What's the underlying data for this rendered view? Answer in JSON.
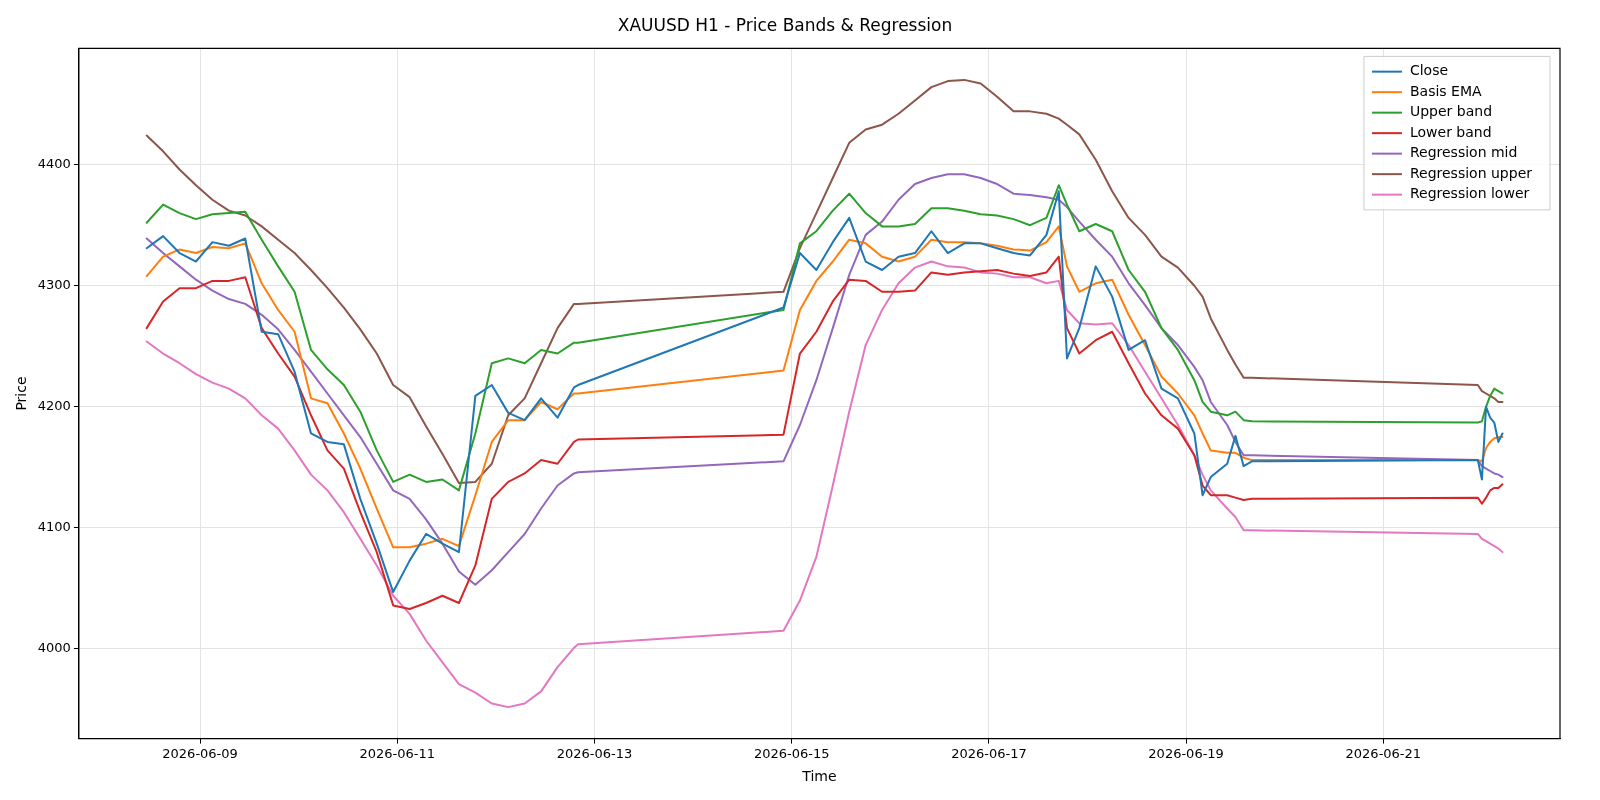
{
  "chart_data": {
    "type": "line",
    "title": "XAUUSD H1 - Price Bands & Regression",
    "xlabel": "Time",
    "ylabel": "Price",
    "x": [
      "2026-06-08T11:00",
      "2026-06-08T15:00",
      "2026-06-08T19:00",
      "2026-06-08T23:00",
      "2026-06-09T03:00",
      "2026-06-09T07:00",
      "2026-06-09T11:00",
      "2026-06-09T15:00",
      "2026-06-09T19:00",
      "2026-06-09T23:00",
      "2026-06-10T03:00",
      "2026-06-10T07:00",
      "2026-06-10T11:00",
      "2026-06-10T15:00",
      "2026-06-10T19:00",
      "2026-06-10T23:00",
      "2026-06-11T03:00",
      "2026-06-11T07:00",
      "2026-06-11T11:00",
      "2026-06-11T15:00",
      "2026-06-11T19:00",
      "2026-06-11T23:00",
      "2026-06-12T03:00",
      "2026-06-12T07:00",
      "2026-06-12T11:00",
      "2026-06-12T15:00",
      "2026-06-12T19:00",
      "2026-06-12T20:00",
      "2026-06-14T22:00",
      "2026-06-15T02:00",
      "2026-06-15T06:00",
      "2026-06-15T10:00",
      "2026-06-15T14:00",
      "2026-06-15T18:00",
      "2026-06-15T22:00",
      "2026-06-16T02:00",
      "2026-06-16T06:00",
      "2026-06-16T10:00",
      "2026-06-16T14:00",
      "2026-06-16T18:00",
      "2026-06-16T22:00",
      "2026-06-17T02:00",
      "2026-06-17T06:00",
      "2026-06-17T10:00",
      "2026-06-17T14:00",
      "2026-06-17T17:00",
      "2026-06-17T19:00",
      "2026-06-17T22:00",
      "2026-06-18T02:00",
      "2026-06-18T06:00",
      "2026-06-18T10:00",
      "2026-06-18T14:00",
      "2026-06-18T18:00",
      "2026-06-18T22:00",
      "2026-06-19T02:00",
      "2026-06-19T04:00",
      "2026-06-19T06:00",
      "2026-06-19T10:00",
      "2026-06-19T12:00",
      "2026-06-19T14:00",
      "2026-06-19T16:00",
      "2026-06-21T23:00",
      "2026-06-22T00:00",
      "2026-06-22T01:00",
      "2026-06-22T02:00",
      "2026-06-22T03:00",
      "2026-06-22T04:00",
      "2026-06-22T05:00"
    ],
    "series": [
      {
        "name": "Close",
        "color": "#1f77b4",
        "values": [
          4331,
          4341,
          4327,
          4320,
          4336,
          4333,
          4339,
          4262,
          4260,
          4229,
          4178,
          4171,
          4169,
          4124,
          4087,
          4047,
          4073,
          4095,
          4087,
          4080,
          4209,
          4218,
          4195,
          4189,
          4207,
          4191,
          4216,
          4218,
          4282,
          4327,
          4313,
          4336,
          4356,
          4320,
          4313,
          4324,
          4327,
          4345,
          4327,
          4335,
          4335,
          4331,
          4327,
          4325,
          4342,
          4378,
          4240,
          4265,
          4316,
          4291,
          4247,
          4255,
          4215,
          4207,
          4178,
          4127,
          4142,
          4153,
          4176,
          4151,
          4155,
          4156,
          4140,
          4200,
          4191,
          4187,
          4171,
          4178
        ]
      },
      {
        "name": "Basis EMA",
        "color": "#ff7f0e",
        "values": [
          4308,
          4324,
          4330,
          4327,
          4332,
          4331,
          4335,
          4302,
          4280,
          4262,
          4207,
          4203,
          4178,
          4149,
          4116,
          4084,
          4084,
          4087,
          4091,
          4085,
          4127,
          4171,
          4189,
          4189,
          4204,
          4198,
          4211,
          4211,
          4230,
          4280,
          4304,
          4320,
          4338,
          4335,
          4324,
          4320,
          4324,
          4338,
          4336,
          4336,
          4335,
          4333,
          4330,
          4329,
          4336,
          4349,
          4316,
          4295,
          4302,
          4305,
          4276,
          4251,
          4225,
          4211,
          4193,
          4178,
          4164,
          4162,
          4162,
          4158,
          4156,
          4156,
          4155,
          4166,
          4171,
          4174,
          4175,
          4175
        ]
      },
      {
        "name": "Upper band",
        "color": "#2ca02c",
        "values": [
          4352,
          4367,
          4360,
          4355,
          4359,
          4360,
          4361,
          4338,
          4316,
          4295,
          4247,
          4231,
          4218,
          4196,
          4164,
          4138,
          4144,
          4138,
          4140,
          4131,
          4178,
          4236,
          4240,
          4236,
          4247,
          4244,
          4253,
          4253,
          4280,
          4335,
          4345,
          4362,
          4376,
          4360,
          4349,
          4349,
          4351,
          4364,
          4364,
          4362,
          4359,
          4358,
          4355,
          4350,
          4356,
          4383,
          4367,
          4345,
          4351,
          4345,
          4313,
          4295,
          4265,
          4247,
          4222,
          4204,
          4196,
          4193,
          4196,
          4189,
          4188,
          4187,
          4188,
          4200,
          4209,
          4215,
          4213,
          4211
        ]
      },
      {
        "name": "Lower band",
        "color": "#d62728",
        "values": [
          4265,
          4287,
          4298,
          4298,
          4304,
          4304,
          4307,
          4265,
          4244,
          4225,
          4193,
          4164,
          4149,
          4113,
          4080,
          4036,
          4033,
          4038,
          4044,
          4038,
          4069,
          4124,
          4138,
          4145,
          4156,
          4153,
          4171,
          4173,
          4177,
          4244,
          4262,
          4287,
          4305,
          4304,
          4295,
          4295,
          4296,
          4311,
          4309,
          4311,
          4312,
          4313,
          4310,
          4308,
          4311,
          4324,
          4265,
          4244,
          4255,
          4262,
          4236,
          4211,
          4193,
          4182,
          4160,
          4135,
          4127,
          4127,
          4125,
          4123,
          4124,
          4125,
          4120,
          4125,
          4131,
          4133,
          4133,
          4136
        ]
      },
      {
        "name": "Regression mid",
        "color": "#9467bd",
        "values": [
          4339,
          4327,
          4316,
          4305,
          4296,
          4289,
          4285,
          4276,
          4264,
          4247,
          4229,
          4211,
          4193,
          4175,
          4153,
          4131,
          4124,
          4107,
          4087,
          4064,
          4053,
          4065,
          4080,
          4095,
          4116,
          4135,
          4145,
          4146,
          4155,
          4185,
          4222,
          4265,
          4309,
          4342,
          4353,
          4371,
          4384,
          4389,
          4392,
          4392,
          4389,
          4384,
          4376,
          4375,
          4373,
          4371,
          4365,
          4353,
          4338,
          4324,
          4302,
          4284,
          4265,
          4251,
          4233,
          4222,
          4204,
          4185,
          4171,
          4160,
          4160,
          4156,
          4151,
          4149,
          4147,
          4145,
          4144,
          4142
        ]
      },
      {
        "name": "Regression upper",
        "color": "#8c564b",
        "values": [
          4424,
          4411,
          4396,
          4383,
          4371,
          4362,
          4358,
          4349,
          4338,
          4327,
          4313,
          4298,
          4282,
          4264,
          4244,
          4218,
          4208,
          4184,
          4161,
          4137,
          4138,
          4153,
          4193,
          4207,
          4236,
          4265,
          4285,
          4285,
          4295,
          4331,
          4360,
          4389,
          4418,
          4429,
          4433,
          4442,
          4453,
          4464,
          4469,
          4470,
          4467,
          4456,
          4444,
          4444,
          4442,
          4438,
          4433,
          4425,
          4404,
          4378,
          4356,
          4342,
          4324,
          4315,
          4300,
          4291,
          4273,
          4247,
          4235,
          4224,
          4224,
          4218,
          4213,
          4211,
          4209,
          4207,
          4204,
          4204
        ]
      },
      {
        "name": "Regression lower",
        "color": "#e377c2",
        "values": [
          4254,
          4244,
          4236,
          4227,
          4220,
          4215,
          4207,
          4193,
          4182,
          4164,
          4144,
          4131,
          4113,
          4091,
          4069,
          4044,
          4029,
          4007,
          3989,
          3971,
          3964,
          3955,
          3952,
          3955,
          3965,
          3985,
          4001,
          4004,
          4015,
          4040,
          4076,
          4135,
          4196,
          4251,
          4280,
          4302,
          4315,
          4320,
          4316,
          4315,
          4311,
          4310,
          4307,
          4307,
          4302,
          4304,
          4280,
          4269,
          4268,
          4269,
          4251,
          4229,
          4207,
          4185,
          4160,
          4144,
          4131,
          4116,
          4109,
          4098,
          4098,
          4095,
          4091,
          4089,
          4087,
          4085,
          4083,
          4080
        ]
      }
    ],
    "xlim": [
      "2026-06-07T18:30",
      "2026-06-22T19:00"
    ],
    "xticks": [
      "2026-06-09",
      "2026-06-11",
      "2026-06-13",
      "2026-06-15",
      "2026-06-17",
      "2026-06-19",
      "2026-06-21"
    ],
    "ylim": [
      3926,
      4496
    ],
    "yticks": [
      4000,
      4100,
      4200,
      4300,
      4400
    ],
    "grid": true,
    "legend": "top right",
    "marker": "none",
    "line_style": "solid"
  }
}
